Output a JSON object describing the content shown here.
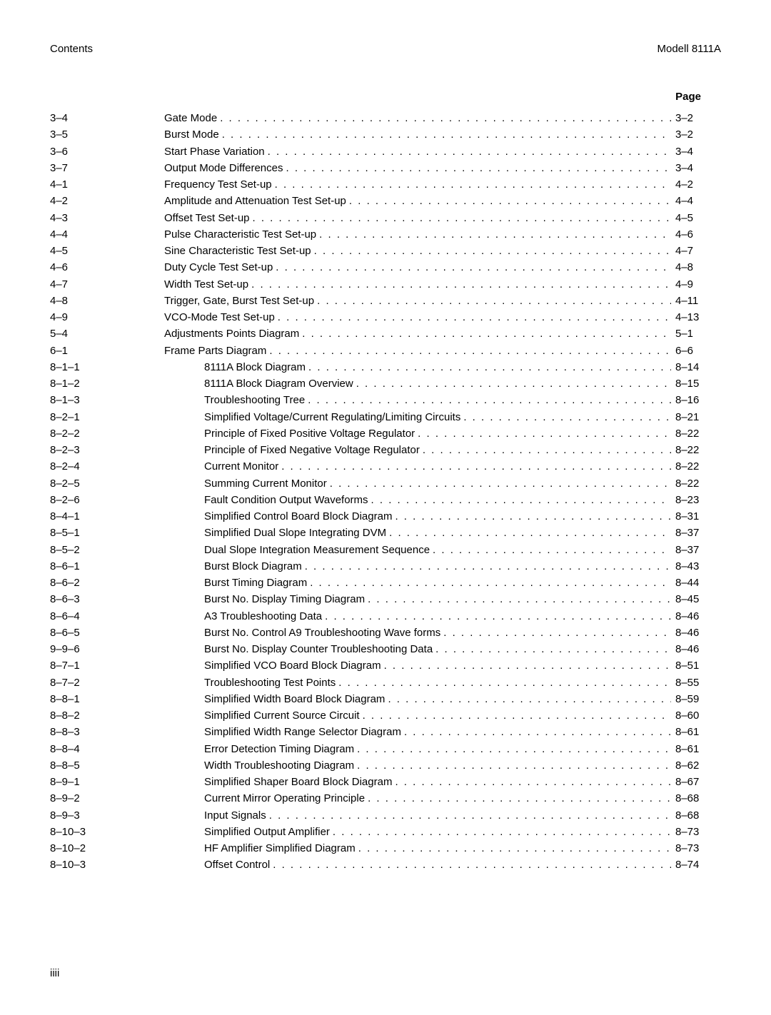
{
  "header": {
    "left": "Contents",
    "right": "Modell 8111A"
  },
  "column_label": "Page",
  "footer": "iiii",
  "toc": [
    {
      "n": "3–4",
      "t": "Gate Mode",
      "p": "3–2",
      "i": 0
    },
    {
      "n": "3–5",
      "t": "Burst Mode",
      "p": "3–2",
      "i": 0
    },
    {
      "n": "3–6",
      "t": "Start Phase Variation",
      "p": "3–4",
      "i": 0
    },
    {
      "n": "3–7",
      "t": "Output Mode Differences",
      "p": "3–4",
      "i": 0
    },
    {
      "n": "4–1",
      "t": "Frequency Test Set-up",
      "p": "4–2",
      "i": 0
    },
    {
      "n": "4–2",
      "t": "Amplitude and Attenuation Test Set-up",
      "p": "4–4",
      "i": 0
    },
    {
      "n": "4–3",
      "t": "Offset Test Set-up",
      "p": "4–5",
      "i": 0
    },
    {
      "n": "4–4",
      "t": "Pulse Characteristic Test Set-up",
      "p": "4–6",
      "i": 0
    },
    {
      "n": "4–5",
      "t": "Sine Characteristic Test Set-up",
      "p": "4–7",
      "i": 0
    },
    {
      "n": "4–6",
      "t": "Duty Cycle Test Set-up",
      "p": "4–8",
      "i": 0
    },
    {
      "n": "4–7",
      "t": "Width Test Set-up",
      "p": "4–9",
      "i": 0
    },
    {
      "n": "4–8",
      "t": "Trigger, Gate, Burst Test Set-up",
      "p": "4–11",
      "i": 0
    },
    {
      "n": "4–9",
      "t": "VCO-Mode Test  Set-up",
      "p": "4–13",
      "i": 0
    },
    {
      "n": "5–4",
      "t": "Adjustments Points Diagram",
      "p": "5–1",
      "i": 0
    },
    {
      "n": "6–1",
      "t": "Frame Parts Diagram",
      "p": "6–6",
      "i": 0
    },
    {
      "n": "8–1–1",
      "t": "8111A Block Diagram",
      "p": "8–14",
      "i": 1
    },
    {
      "n": "8–1–2",
      "t": "8111A Block Diagram Overview",
      "p": "8–15",
      "i": 1
    },
    {
      "n": "8–1–3",
      "t": "Troubleshooting Tree",
      "p": "8–16",
      "i": 1
    },
    {
      "n": "8–2–1",
      "t": "Simplified Voltage/Current Regulating/Limiting Circuits",
      "p": "8–21",
      "i": 1
    },
    {
      "n": "8–2–2",
      "t": "Principle of Fixed Positive Voltage Regulator",
      "p": "8–22",
      "i": 1
    },
    {
      "n": "8–2–3",
      "t": "Principle of Fixed Negative Voltage Regulator",
      "p": "8–22",
      "i": 1
    },
    {
      "n": "8–2–4",
      "t": "Current Monitor",
      "p": "8–22",
      "i": 1
    },
    {
      "n": "8–2–5",
      "t": "Summing Current Monitor",
      "p": "8–22",
      "i": 1
    },
    {
      "n": "8–2–6",
      "t": "Fault Condition Output Waveforms",
      "p": "8–23",
      "i": 1
    },
    {
      "n": "8–4–1",
      "t": "Simplified Control Board Block Diagram",
      "p": "8–31",
      "i": 1
    },
    {
      "n": "8–5–1",
      "t": "Simplified Dual Slope Integrating DVM",
      "p": "8–37",
      "i": 1
    },
    {
      "n": "8–5–2",
      "t": "Dual Slope Integration Measurement Sequence",
      "p": "8–37",
      "i": 1
    },
    {
      "n": "8–6–1",
      "t": "Burst Block Diagram",
      "p": "8–43",
      "i": 1
    },
    {
      "n": "8–6–2",
      "t": "Burst Timing Diagram",
      "p": "8–44",
      "i": 1
    },
    {
      "n": "8–6–3",
      "t": "Burst No. Display Timing Diagram",
      "p": "8–45",
      "i": 1
    },
    {
      "n": "8–6–4",
      "t": "A3 Troubleshooting Data",
      "p": "8–46",
      "i": 1
    },
    {
      "n": "8–6–5",
      "t": "Burst No. Control A9 Troubleshooting Wave forms",
      "p": "8–46",
      "i": 1
    },
    {
      "n": "9–9–6",
      "t": "Burst No. Display Counter Troubleshooting Data",
      "p": "8–46",
      "i": 1
    },
    {
      "n": "8–7–1",
      "t": "Simplified VCO Board Block Diagram",
      "p": "8–51",
      "i": 1
    },
    {
      "n": "8–7–2",
      "t": "Troubleshooting Test Points",
      "p": "8–55",
      "i": 1
    },
    {
      "n": "8–8–1",
      "t": "Simplified Width Board Block Diagram",
      "p": "8–59",
      "i": 1
    },
    {
      "n": "8–8–2",
      "t": "Simplified Current Source Circuit",
      "p": "8–60",
      "i": 1
    },
    {
      "n": "8–8–3",
      "t": "Simplified Width Range Selector Diagram",
      "p": "8–61",
      "i": 1
    },
    {
      "n": "8–8–4",
      "t": "Error Detection Timing Diagram",
      "p": "8–61",
      "i": 1
    },
    {
      "n": "8–8–5",
      "t": "Width Troubleshooting Diagram",
      "p": "8–62",
      "i": 1
    },
    {
      "n": "8–9–1",
      "t": "Simplified Shaper Board Block Diagram",
      "p": "8–67",
      "i": 1
    },
    {
      "n": "8–9–2",
      "t": "Current Mirror Operating Principle",
      "p": "8–68",
      "i": 1
    },
    {
      "n": "8–9–3",
      "t": "Input Signals",
      "p": "8–68",
      "i": 1
    },
    {
      "n": "8–10–3",
      "t": "Simplified Output Amplifier",
      "p": "8–73",
      "i": 1
    },
    {
      "n": "8–10–2",
      "t": "HF Amplifier Simplified Diagram",
      "p": "8–73",
      "i": 1
    },
    {
      "n": "8–10–3",
      "t": "Offset Control",
      "p": "8–74",
      "i": 1
    }
  ]
}
